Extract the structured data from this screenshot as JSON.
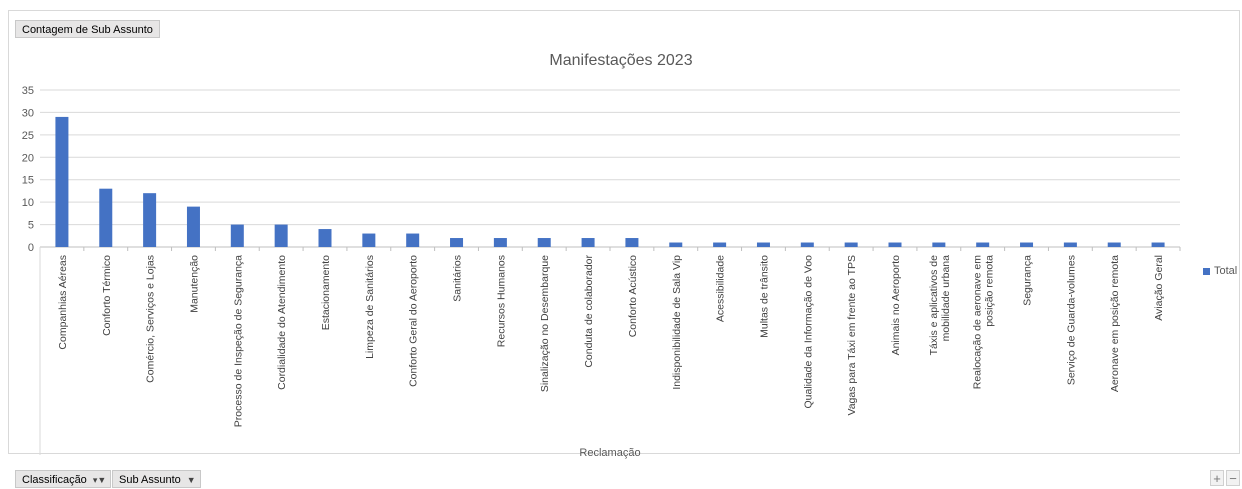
{
  "pivot": {
    "value_field": "Contagem de Sub Assunto",
    "row_fields": [
      {
        "label": "Classificação",
        "icon": "filter-icon"
      },
      {
        "label": "Sub Assunto",
        "icon": "dropdown-icon"
      }
    ],
    "zoom_in": "+",
    "zoom_out": "−"
  },
  "chart_data": {
    "type": "bar",
    "title": "Manifestações 2023",
    "xlabel": "Reclamação",
    "ylabel": "",
    "ylim": [
      0,
      35
    ],
    "yticks": [
      0,
      5,
      10,
      15,
      20,
      25,
      30,
      35
    ],
    "grid": true,
    "legend_position": "right",
    "color": "#4472c4",
    "categories": [
      "Companhias Aéreas",
      "Conforto Térmico",
      "Comércio, Serviços e Lojas",
      "Manutenção",
      "Processo de Inspeção de Segurança",
      "Cordialidade do Atendimento",
      "Estacionamento",
      "Limpeza de Sanitários",
      "Conforto Geral do Aeroporto",
      "Sanitários",
      "Recursos Humanos",
      "Sinalização no Desembarque",
      "Conduta de colaborador",
      "Conforto Acústico",
      "Indisponibilidade de Sala Vip",
      "Acessibilidade",
      "Multas de trânsito",
      "Qualidade da Informação de Voo",
      "Vagas para Táxi em frente ao TPS",
      "Animais no Aeroporto",
      "Táxis e aplicativos de mobilidade urbana",
      "Realocação de aeronave em posição remota",
      "Segurança",
      "Serviço de Guarda-volumes",
      "Aeronave em posição remota",
      "Aviação Geral"
    ],
    "series": [
      {
        "name": "Total",
        "values": [
          29,
          13,
          12,
          9,
          5,
          5,
          4,
          3,
          3,
          2,
          2,
          2,
          2,
          2,
          1,
          1,
          1,
          1,
          1,
          1,
          1,
          1,
          1,
          1,
          1,
          1
        ]
      }
    ]
  }
}
